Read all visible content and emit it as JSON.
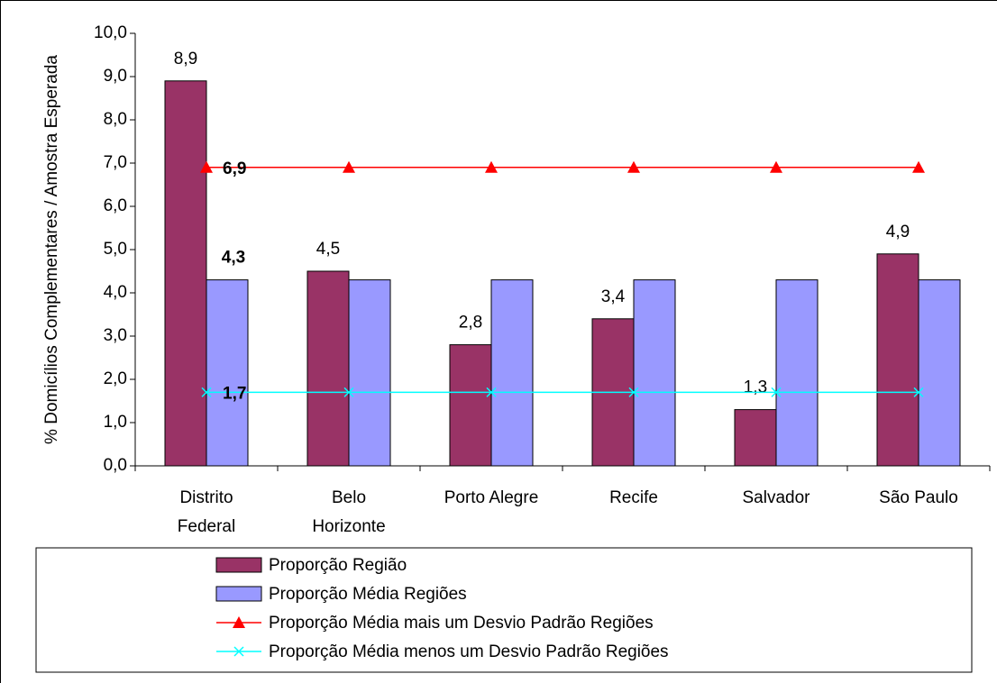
{
  "chart_data": {
    "type": "bar",
    "y_label": "% Domicílios Complementares / Amostra Esperada",
    "categories": [
      "Distrito\nFederal",
      "Belo\nHorizonte",
      "Porto Alegre",
      "Recife",
      "Salvador",
      "São Paulo"
    ],
    "ylim": [
      0,
      10
    ],
    "yticks": [
      {
        "value": 0,
        "label": "0,0"
      },
      {
        "value": 1,
        "label": "1,0"
      },
      {
        "value": 2,
        "label": "2,0"
      },
      {
        "value": 3,
        "label": "3,0"
      },
      {
        "value": 4,
        "label": "4,0"
      },
      {
        "value": 5,
        "label": "5,0"
      },
      {
        "value": 6,
        "label": "6,0"
      },
      {
        "value": 7,
        "label": "7,0"
      },
      {
        "value": 8,
        "label": "8,0"
      },
      {
        "value": 9,
        "label": "9,0"
      },
      {
        "value": 10,
        "label": "10,0"
      }
    ],
    "grid": false,
    "legend": "bottom",
    "series": [
      {
        "name": "Proporção Região",
        "type": "bar",
        "color": "#993366",
        "values": [
          8.9,
          4.5,
          2.8,
          3.4,
          1.3,
          4.9
        ],
        "value_labels": [
          "8,9",
          "4,5",
          "2,8",
          "3,4",
          "1,3",
          "4,9"
        ]
      },
      {
        "name": "Proporção Média Regiões",
        "type": "bar",
        "color": "#9999ff",
        "values": [
          4.3,
          4.3,
          4.3,
          4.3,
          4.3,
          4.3
        ],
        "value_labels": [
          "4,3",
          null,
          null,
          null,
          null,
          null
        ]
      },
      {
        "name": "Proporção Média mais um Desvio Padrão Regiões",
        "type": "line",
        "marker": "triangle",
        "color": "#ff0000",
        "values": [
          6.9,
          6.9,
          6.9,
          6.9,
          6.9,
          6.9
        ],
        "value_labels": [
          "6,9",
          null,
          null,
          null,
          null,
          null
        ]
      },
      {
        "name": "Proporção Média menos um Desvio Padrão Regiões",
        "type": "line",
        "marker": "x",
        "color": "#00ffff",
        "values": [
          1.7,
          1.7,
          1.7,
          1.7,
          1.7,
          1.7
        ],
        "value_labels": [
          "1,7",
          null,
          null,
          null,
          null,
          null
        ]
      }
    ]
  }
}
